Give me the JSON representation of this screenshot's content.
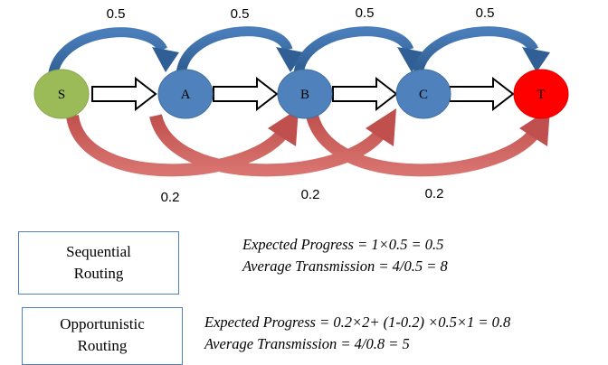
{
  "nodes": {
    "s": "S",
    "a": "A",
    "b": "B",
    "c": "C",
    "t": "T"
  },
  "colors": {
    "source_node": "#9bbb59",
    "relay_node": "#4f81bd",
    "target_node": "#ff0000",
    "hop_arc": "#376092",
    "skip_arc": "#c0504d"
  },
  "hop_probabilities": [
    "0.5",
    "0.5",
    "0.5",
    "0.5"
  ],
  "skip_probabilities": [
    "0.2",
    "0.2",
    "0.2"
  ],
  "sequential": {
    "label_line1": "Sequential",
    "label_line2": "Routing",
    "progress": "Expected Progress = 1×0.5 = 0.5",
    "transmission": "Average Transmission = 4/0.5 = 8"
  },
  "opportunistic": {
    "label_line1": "Opportunistic",
    "label_line2": "Routing",
    "progress": "Expected Progress = 0.2×2+ (1-0.2) ×0.5×1 = 0.8",
    "transmission": "Average Transmission = 4/0.8 = 5"
  }
}
